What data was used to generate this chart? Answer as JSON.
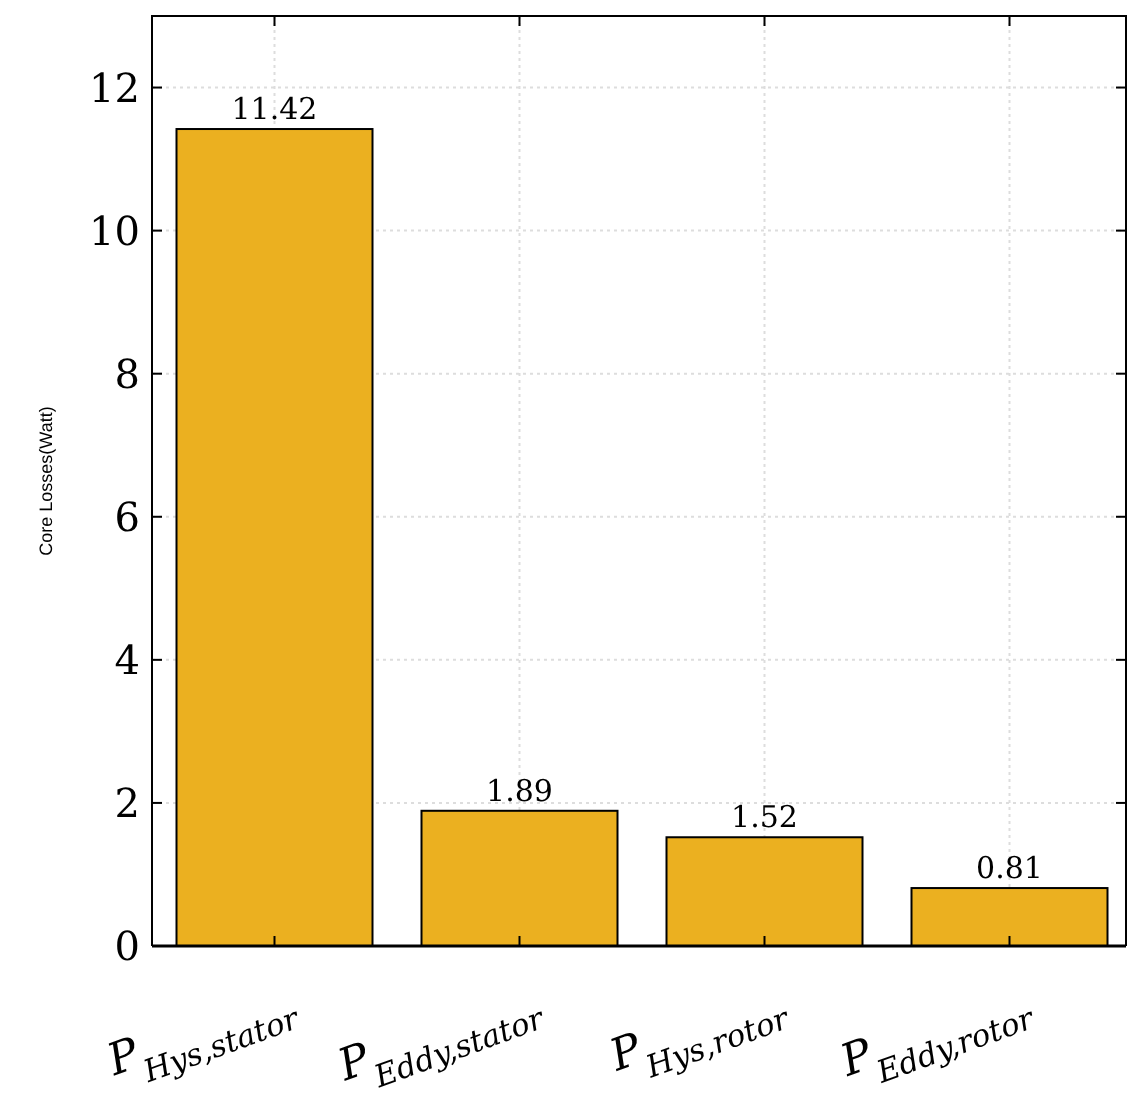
{
  "chart_data": {
    "type": "bar",
    "ylabel": "Core Losses(Watt)",
    "categories": [
      "P$_{Hys,stator}$",
      "P$_{Eddy,stator}$",
      "P$_{Hys,rotor}$",
      "P$_{Eddy,rotor}$"
    ],
    "values": [
      11.42,
      1.89,
      1.52,
      0.81
    ],
    "color": "#ebb020",
    "ylim": [
      0,
      13
    ],
    "yticks": [
      0,
      2,
      4,
      6,
      8,
      10,
      12
    ],
    "grid": true,
    "data_labels": true
  }
}
